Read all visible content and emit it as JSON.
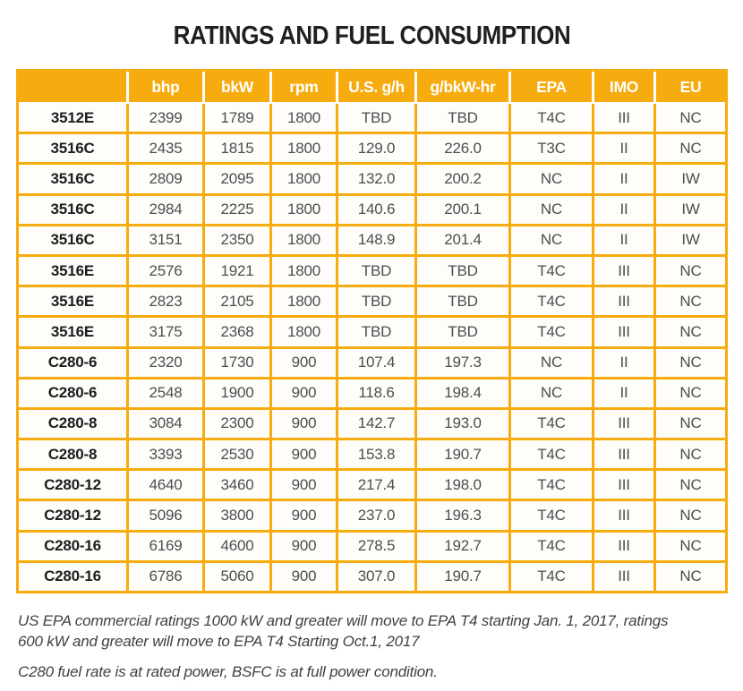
{
  "title": "RATINGS AND FUEL CONSUMPTION",
  "colors": {
    "accent_gold": "#F6AB0E",
    "header_text": "#FFFFFF",
    "row_label_text": "#1E1C1D",
    "data_text": "#4D4D4F",
    "title_text": "#231F20",
    "background": "#FFFFFF"
  },
  "table": {
    "columns": [
      "",
      "bhp",
      "bkW",
      "rpm",
      "U.S. g/h",
      "g/bkW-hr",
      "EPA",
      "IMO",
      "EU"
    ],
    "rows": [
      {
        "model": "3512E",
        "values": [
          "2399",
          "1789",
          "1800",
          "TBD",
          "TBD",
          "T4C",
          "III",
          "NC"
        ]
      },
      {
        "model": "3516C",
        "values": [
          "2435",
          "1815",
          "1800",
          "129.0",
          "226.0",
          "T3C",
          "II",
          "NC"
        ]
      },
      {
        "model": "3516C",
        "values": [
          "2809",
          "2095",
          "1800",
          "132.0",
          "200.2",
          "NC",
          "II",
          "IW"
        ]
      },
      {
        "model": "3516C",
        "values": [
          "2984",
          "2225",
          "1800",
          "140.6",
          "200.1",
          "NC",
          "II",
          "IW"
        ]
      },
      {
        "model": "3516C",
        "values": [
          "3151",
          "2350",
          "1800",
          "148.9",
          "201.4",
          "NC",
          "II",
          "IW"
        ]
      },
      {
        "model": "3516E",
        "values": [
          "2576",
          "1921",
          "1800",
          "TBD",
          "TBD",
          "T4C",
          "III",
          "NC"
        ]
      },
      {
        "model": "3516E",
        "values": [
          "2823",
          "2105",
          "1800",
          "TBD",
          "TBD",
          "T4C",
          "III",
          "NC"
        ]
      },
      {
        "model": "3516E",
        "values": [
          "3175",
          "2368",
          "1800",
          "TBD",
          "TBD",
          "T4C",
          "III",
          "NC"
        ]
      },
      {
        "model": "C280-6",
        "values": [
          "2320",
          "1730",
          "900",
          "107.4",
          "197.3",
          "NC",
          "II",
          "NC"
        ]
      },
      {
        "model": "C280-6",
        "values": [
          "2548",
          "1900",
          "900",
          "118.6",
          "198.4",
          "NC",
          "II",
          "NC"
        ]
      },
      {
        "model": "C280-8",
        "values": [
          "3084",
          "2300",
          "900",
          "142.7",
          "193.0",
          "T4C",
          "III",
          "NC"
        ]
      },
      {
        "model": "C280-8",
        "values": [
          "3393",
          "2530",
          "900",
          "153.8",
          "190.7",
          "T4C",
          "III",
          "NC"
        ]
      },
      {
        "model": "C280-12",
        "values": [
          "4640",
          "3460",
          "900",
          "217.4",
          "198.0",
          "T4C",
          "III",
          "NC"
        ]
      },
      {
        "model": "C280-12",
        "values": [
          "5096",
          "3800",
          "900",
          "237.0",
          "196.3",
          "T4C",
          "III",
          "NC"
        ]
      },
      {
        "model": "C280-16",
        "values": [
          "6169",
          "4600",
          "900",
          "278.5",
          "192.7",
          "T4C",
          "III",
          "NC"
        ]
      },
      {
        "model": "C280-16",
        "values": [
          "6786",
          "5060",
          "900",
          "307.0",
          "190.7",
          "T4C",
          "III",
          "NC"
        ]
      }
    ]
  },
  "footnotes": [
    "US EPA commercial ratings 1000 kW and greater will move to EPA T4 starting Jan. 1, 2017, ratings 600 kW and greater will move to EPA T4 Starting Oct.1, 2017",
    "C280 fuel rate is at rated power, BSFC is at full power condition."
  ]
}
